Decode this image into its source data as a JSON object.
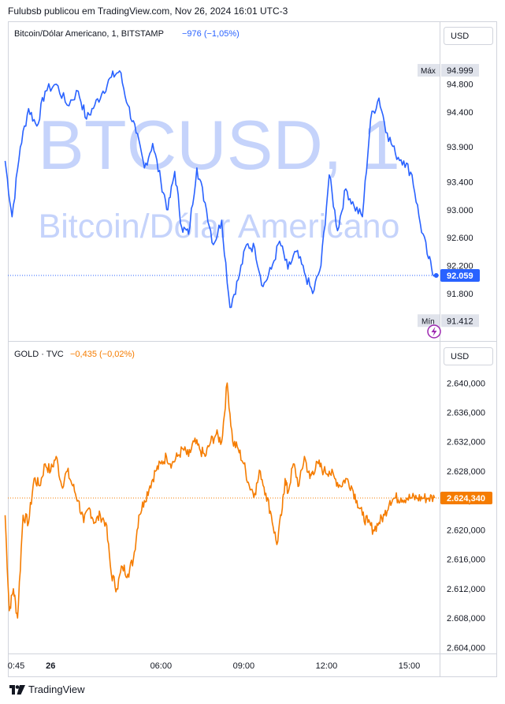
{
  "header": {
    "text": "Fulubsb publicou em TradingView.com, Nov 26, 2024 16:01 UTC-3"
  },
  "footer": {
    "brand": "TradingView",
    "logo_icon": "tradingview-logo-icon"
  },
  "colors": {
    "btc_line": "#2962ff",
    "gold_line": "#f57c00",
    "watermark": "#c5d3fb",
    "grid": "#e0e3eb"
  },
  "chart_data": [
    {
      "type": "line",
      "pane": "top",
      "legend": {
        "symbol": "Bitcoin/Dólar Americano, 1, BITSTAMP",
        "change": "−976 (−1,05%)"
      },
      "watermark": {
        "ticker": "BTCUSD, 1",
        "name": "Bitcoin/Dólar Americano"
      },
      "currency": "USD",
      "ylim": [
        91200,
        95350
      ],
      "y_ticks": [
        94800,
        94400,
        93900,
        93400,
        93000,
        92600,
        92200,
        91800
      ],
      "y_tick_labels": [
        "94.800",
        "94.400",
        "93.900",
        "93.400",
        "93.000",
        "92.600",
        "92.200",
        "91.800"
      ],
      "max": {
        "label": "Máx",
        "value": "94.999",
        "num": 94999
      },
      "min": {
        "label": "Mín",
        "value": "91.412",
        "num": 91412
      },
      "last": {
        "value": "92.059",
        "num": 92059
      },
      "series": [
        {
          "x": [
            0.35,
            0.6,
            0.9,
            1.2,
            1.5,
            1.8,
            2.2,
            2.6,
            3.0,
            3.3,
            3.6,
            3.9,
            4.2,
            4.5,
            4.8,
            5.1,
            5.4,
            5.7,
            6.0,
            6.25,
            6.5,
            6.75,
            7.0,
            7.3,
            7.6,
            7.9,
            8.2,
            8.5,
            8.8,
            9.1,
            9.4,
            9.7,
            10.0,
            10.3,
            10.6,
            10.9,
            11.2,
            11.5,
            11.8,
            12.1,
            12.4,
            12.7,
            13.0,
            13.3,
            13.6,
            13.9,
            14.2,
            14.5,
            14.8,
            15.1,
            15.4,
            15.7,
            15.92
          ],
          "values": [
            93700,
            92900,
            93900,
            94450,
            94200,
            94700,
            94800,
            94500,
            94700,
            94300,
            94500,
            94700,
            94900,
            94990,
            94500,
            94100,
            93600,
            93950,
            93400,
            93000,
            93550,
            92750,
            92650,
            93600,
            93100,
            92500,
            92850,
            91600,
            92000,
            92500,
            92450,
            91900,
            92150,
            92550,
            92150,
            92400,
            92100,
            91800,
            92200,
            93500,
            92700,
            93300,
            93050,
            92900,
            94300,
            94600,
            94100,
            93800,
            93700,
            93500,
            92800,
            92300,
            92059
          ]
        }
      ]
    },
    {
      "type": "line",
      "pane": "bottom",
      "legend": {
        "symbol": "GOLD · TVC",
        "change": "−0,435 (−0,02%)"
      },
      "currency": "USD",
      "ylim": [
        2603.5,
        2642.5
      ],
      "y_ticks": [
        2640,
        2636,
        2632,
        2628,
        2624,
        2620,
        2616,
        2612,
        2608,
        2604
      ],
      "y_tick_labels": [
        "2.640,000",
        "2.636,000",
        "2.632,000",
        "2.628,000",
        "2.624,000",
        "2.620,000",
        "2.616,000",
        "2.612,000",
        "2.608,000",
        "2.604,000"
      ],
      "last": {
        "value": "2.624,340",
        "num": 2624.34
      },
      "series": [
        {
          "x": [
            0.35,
            0.5,
            0.65,
            0.8,
            1.0,
            1.2,
            1.4,
            1.6,
            1.8,
            2.0,
            2.2,
            2.4,
            2.6,
            2.8,
            3.0,
            3.2,
            3.4,
            3.6,
            3.8,
            4.0,
            4.2,
            4.4,
            4.6,
            4.8,
            5.0,
            5.2,
            5.4,
            5.6,
            5.8,
            6.0,
            6.2,
            6.4,
            6.6,
            6.8,
            7.0,
            7.2,
            7.4,
            7.6,
            7.8,
            8.0,
            8.2,
            8.4,
            8.6,
            8.8,
            9.0,
            9.2,
            9.4,
            9.6,
            9.8,
            10.0,
            10.2,
            10.4,
            10.5,
            10.6,
            10.8,
            11.0,
            11.2,
            11.4,
            11.5,
            11.7,
            11.9,
            12.1,
            12.3,
            12.5,
            12.7,
            12.9,
            13.1,
            13.3,
            13.5,
            13.7,
            13.9,
            14.1,
            14.3,
            14.5,
            14.7,
            14.9,
            15.1,
            15.3,
            15.5,
            15.7,
            15.92
          ],
          "values": [
            2622,
            2609,
            2612,
            2608,
            2622,
            2621,
            2627,
            2626,
            2629,
            2628,
            2630,
            2626,
            2628,
            2626,
            2624,
            2621,
            2623,
            2621,
            2622,
            2621,
            2614,
            2612,
            2615,
            2614,
            2616,
            2622,
            2624,
            2626,
            2628,
            2629,
            2630,
            2629,
            2630,
            2631,
            2630,
            2632,
            2631,
            2630,
            2632,
            2633,
            2632,
            2640,
            2632,
            2631,
            2629,
            2626,
            2625,
            2628,
            2625,
            2622,
            2618,
            2623,
            2627,
            2625,
            2629,
            2626,
            2630,
            2627,
            2628,
            2629,
            2628,
            2628,
            2627,
            2626,
            2627,
            2626,
            2624,
            2622,
            2621,
            2620,
            2621,
            2622,
            2624,
            2624.34,
            2624.34,
            2624.34,
            2624.34,
            2624.34,
            2624.34,
            2624.34,
            2624.34
          ]
        }
      ]
    }
  ],
  "x_axis": {
    "range": [
      0.45,
      16.1
    ],
    "ticks": [
      {
        "x": 0.75,
        "label": "0:45",
        "bold": false
      },
      {
        "x": 2.0,
        "label": "26",
        "bold": true
      },
      {
        "x": 6.0,
        "label": "06:00",
        "bold": false
      },
      {
        "x": 9.0,
        "label": "09:00",
        "bold": false
      },
      {
        "x": 12.0,
        "label": "12:00",
        "bold": false
      },
      {
        "x": 15.0,
        "label": "15:00",
        "bold": false
      }
    ]
  }
}
